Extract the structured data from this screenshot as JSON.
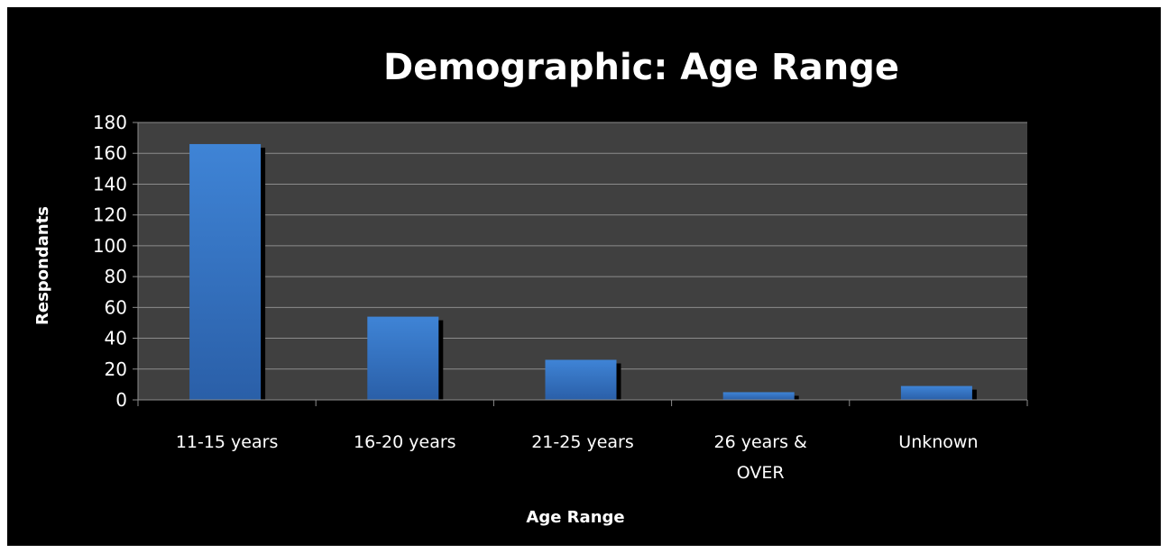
{
  "chart_data": {
    "type": "bar",
    "title": "Demographic: Age Range",
    "xlabel": "Age Range",
    "ylabel": "Respondants",
    "categories": [
      [
        "11-15 years"
      ],
      [
        "16-20 years"
      ],
      [
        "21-25 years"
      ],
      [
        "26 years &",
        "OVER"
      ],
      [
        "Unknown"
      ]
    ],
    "values": [
      166,
      54,
      26,
      5,
      9
    ],
    "ylim": [
      0,
      180
    ],
    "yticks": [
      "0",
      "20",
      "40",
      "60",
      "80",
      "100",
      "120",
      "140",
      "160",
      "180"
    ],
    "grid": true,
    "legend": "none"
  },
  "colors": {
    "background": "#000000",
    "plot_area": "#404040",
    "gridline": "#8c8c8c",
    "bar_top": "#3f84d6",
    "bar_bottom": "#2a5fa8",
    "bar_shadow": "#000000",
    "text": "#ffffff"
  }
}
